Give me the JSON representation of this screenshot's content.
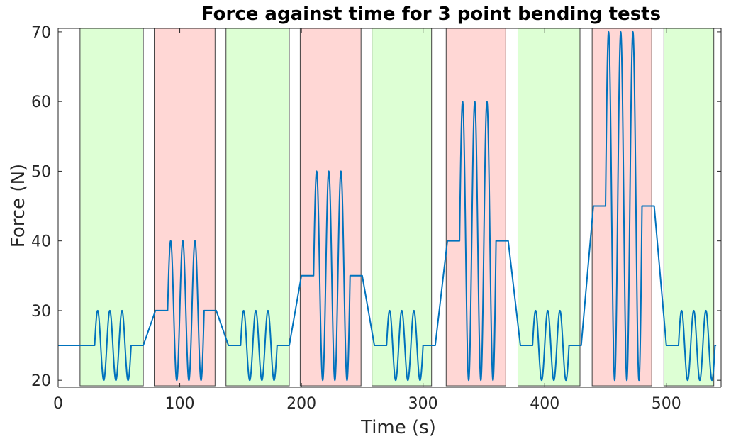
{
  "chart_data": {
    "type": "line",
    "title": "Force against time for 3 point bending tests",
    "xlabel": "Time (s)",
    "ylabel": "Force (N)",
    "xlim": [
      0,
      545
    ],
    "ylim": [
      19,
      70.5
    ],
    "xticks": [
      0,
      100,
      200,
      300,
      400,
      500
    ],
    "yticks": [
      20,
      30,
      40,
      50,
      60,
      70
    ],
    "grid": false,
    "colors": {
      "line": "#0072BD",
      "green_region": "#DDFFD4",
      "red_region": "#FFD7D5",
      "region_edge": "#404040",
      "axis": "#262626"
    },
    "regions": [
      {
        "x0": 18,
        "x1": 70,
        "color": "green"
      },
      {
        "x0": 79,
        "x1": 129,
        "color": "red"
      },
      {
        "x0": 138,
        "x1": 190,
        "color": "green"
      },
      {
        "x0": 199,
        "x1": 249,
        "color": "red"
      },
      {
        "x0": 258,
        "x1": 307,
        "color": "green"
      },
      {
        "x0": 319,
        "x1": 368,
        "color": "red"
      },
      {
        "x0": 378,
        "x1": 429,
        "color": "green"
      },
      {
        "x0": 439,
        "x1": 488,
        "color": "red"
      },
      {
        "x0": 498,
        "x1": 539,
        "color": "green"
      }
    ],
    "series": [
      {
        "segments": [
          {
            "kind": "flat",
            "x0": 0,
            "x1": 30,
            "y": 25
          },
          {
            "kind": "sine",
            "x0": 30,
            "x1": 60,
            "base": 25,
            "amp": 5,
            "cycles": 3
          },
          {
            "kind": "flat",
            "x0": 60,
            "x1": 70,
            "y": 25
          },
          {
            "kind": "ramp",
            "x0": 70,
            "x1": 80,
            "y0": 25,
            "y1": 30
          },
          {
            "kind": "flat",
            "x0": 80,
            "x1": 90,
            "y": 30
          },
          {
            "kind": "sine",
            "x0": 90,
            "x1": 120,
            "base": 30,
            "amp": 10,
            "cycles": 3
          },
          {
            "kind": "flat",
            "x0": 120,
            "x1": 130,
            "y": 30
          },
          {
            "kind": "ramp",
            "x0": 130,
            "x1": 140,
            "y0": 30,
            "y1": 25
          },
          {
            "kind": "flat",
            "x0": 140,
            "x1": 150,
            "y": 25
          },
          {
            "kind": "sine",
            "x0": 150,
            "x1": 180,
            "base": 25,
            "amp": 5,
            "cycles": 3
          },
          {
            "kind": "flat",
            "x0": 180,
            "x1": 190,
            "y": 25
          },
          {
            "kind": "ramp",
            "x0": 190,
            "x1": 200,
            "y0": 25,
            "y1": 35
          },
          {
            "kind": "flat",
            "x0": 200,
            "x1": 210,
            "y": 35
          },
          {
            "kind": "sine",
            "x0": 210,
            "x1": 240,
            "base": 35,
            "amp": 15,
            "cycles": 3
          },
          {
            "kind": "flat",
            "x0": 240,
            "x1": 250,
            "y": 35
          },
          {
            "kind": "ramp",
            "x0": 250,
            "x1": 260,
            "y0": 35,
            "y1": 25
          },
          {
            "kind": "flat",
            "x0": 260,
            "x1": 270,
            "y": 25
          },
          {
            "kind": "sine",
            "x0": 270,
            "x1": 300,
            "base": 25,
            "amp": 5,
            "cycles": 3
          },
          {
            "kind": "flat",
            "x0": 300,
            "x1": 310,
            "y": 25
          },
          {
            "kind": "ramp",
            "x0": 310,
            "x1": 320,
            "y0": 25,
            "y1": 40
          },
          {
            "kind": "flat",
            "x0": 320,
            "x1": 330,
            "y": 40
          },
          {
            "kind": "sine",
            "x0": 330,
            "x1": 360,
            "base": 40,
            "amp": 20,
            "cycles": 3
          },
          {
            "kind": "flat",
            "x0": 360,
            "x1": 370,
            "y": 40
          },
          {
            "kind": "ramp",
            "x0": 370,
            "x1": 380,
            "y0": 40,
            "y1": 25
          },
          {
            "kind": "flat",
            "x0": 380,
            "x1": 390,
            "y": 25
          },
          {
            "kind": "sine",
            "x0": 390,
            "x1": 420,
            "base": 25,
            "amp": 5,
            "cycles": 3
          },
          {
            "kind": "flat",
            "x0": 420,
            "x1": 430,
            "y": 25
          },
          {
            "kind": "ramp",
            "x0": 430,
            "x1": 440,
            "y0": 25,
            "y1": 45
          },
          {
            "kind": "flat",
            "x0": 440,
            "x1": 450,
            "y": 45
          },
          {
            "kind": "sine",
            "x0": 450,
            "x1": 480,
            "base": 45,
            "amp": 25,
            "cycles": 3
          },
          {
            "kind": "flat",
            "x0": 480,
            "x1": 490,
            "y": 45
          },
          {
            "kind": "ramp",
            "x0": 490,
            "x1": 500,
            "y0": 45,
            "y1": 25
          },
          {
            "kind": "flat",
            "x0": 500,
            "x1": 510,
            "y": 25
          },
          {
            "kind": "sine",
            "x0": 510,
            "x1": 540,
            "base": 25,
            "amp": 5,
            "cycles": 3
          },
          {
            "kind": "ramp",
            "x0": 540,
            "x1": 541,
            "y0": 25,
            "y1": 25
          }
        ]
      }
    ]
  }
}
